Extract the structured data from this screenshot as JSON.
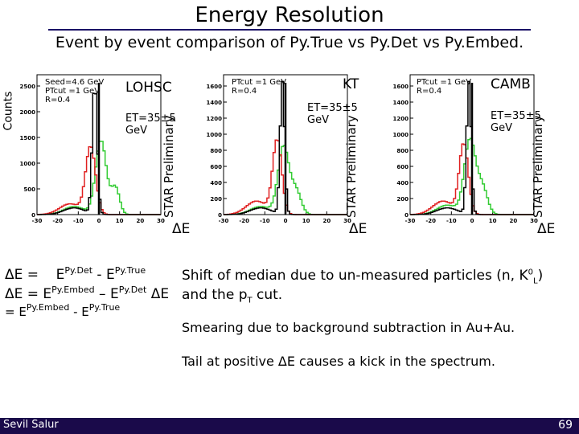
{
  "title": "Energy Resolution",
  "subtitle": "Event by event comparison of Py.True vs Py.Det vs Py.Embed.",
  "y_axis_label": "Counts",
  "panels": [
    {
      "name": "LOHSC",
      "params_line1": "Seed=4.6 GeV",
      "params_line2": "PTcut =1 GeV",
      "params_line3": "R=0.4",
      "et_label": "ET=35±5 GeV",
      "star": "STAR",
      "preliminary": "Preliminary",
      "xlabel": "ΔE",
      "y_ticks": [
        "2500",
        "2000",
        "1500",
        "1000",
        "500",
        "0"
      ],
      "x_ticks": [
        "-30",
        "-20",
        "-10",
        "0",
        "10",
        "20",
        "30"
      ]
    },
    {
      "name": "KT",
      "params_line1": "PTcut =1 GeV",
      "params_line2": "R=0.4",
      "params_line3": "",
      "et_label": "ET=35±5 GeV",
      "star": "STAR",
      "preliminary": "Preliminary",
      "xlabel": "ΔE",
      "y_ticks": [
        "1600",
        "1400",
        "1200",
        "1000",
        "800",
        "600",
        "400",
        "200",
        "0"
      ],
      "x_ticks": [
        "-30",
        "-20",
        "-10",
        "0",
        "10",
        "20",
        "30"
      ]
    },
    {
      "name": "CAMB",
      "params_line1": "PTcut =1 GeV",
      "params_line2": "R=0.4",
      "params_line3": "",
      "et_label": "ET=35±5 GeV",
      "star": "STAR",
      "preliminary": "Preliminary",
      "xlabel": "ΔE",
      "y_ticks": [
        "1600",
        "1400",
        "1200",
        "1000",
        "800",
        "600",
        "400",
        "200",
        "0"
      ],
      "x_ticks": [
        "-30",
        "-20",
        "-10",
        "0",
        "10",
        "20",
        "30"
      ]
    }
  ],
  "equations": {
    "line1_prefix": "ΔE = ",
    "line1_a": "E",
    "line1_a_sup": "Py.Det",
    "line1_b": " - E",
    "line1_b_sup": "Py.True",
    "line2_prefix": "ΔE = E",
    "line2_a_sup": "Py.Embed",
    "line2_b": " – E",
    "line2_b_sup": "Py.Det",
    "line2_suffix": " ΔE",
    "line3_prefix": "= E",
    "line3_a_sup": "Py.Embed",
    "line3_b": " - E",
    "line3_b_sup": "Py.True"
  },
  "notes": {
    "median_line1": "Shift of median due to un-measured particles (n, K",
    "median_sup": "0",
    "median_sub": "L",
    "median_end": ")",
    "median_line2": "and the p",
    "median_line2_sub": "T",
    "median_line2_end": " cut.",
    "smearing": "Smearing due to background subtraction in Au+Au.",
    "tail": "Tail at positive ΔE causes a kick in the spectrum."
  },
  "footer": {
    "author": "Sevil Salur",
    "page": "69"
  },
  "colors": {
    "footer_bg": "#1a0a4a",
    "py_true": "#000000",
    "py_det": "#e02020",
    "py_embed": "#33cc33",
    "notes_text": "#000000"
  }
}
